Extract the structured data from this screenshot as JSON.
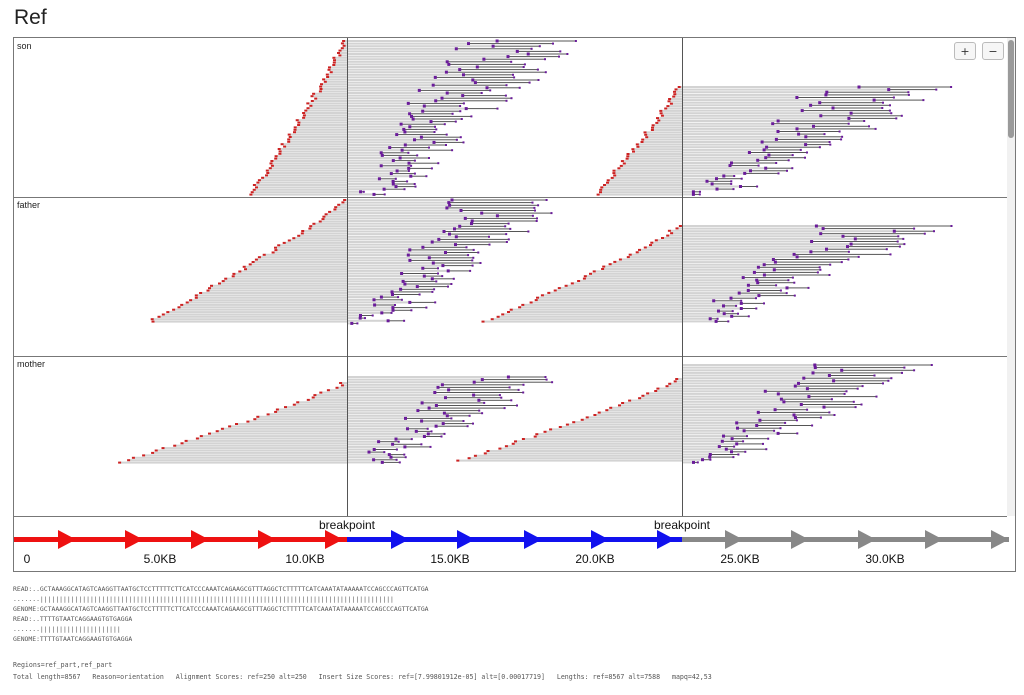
{
  "title": "Ref",
  "zoom": {
    "in_label": "+",
    "out_label": "−"
  },
  "tracks": [
    {
      "name": "son"
    },
    {
      "name": "father"
    },
    {
      "name": "mother"
    }
  ],
  "ruler": {
    "ticks": [
      "0",
      "5.0KB",
      "10.0KB",
      "15.0KB",
      "20.0KB",
      "25.0KB",
      "30.0KB"
    ],
    "breakpoint_label": "breakpoint",
    "segment_colors": [
      "#ee1111",
      "#1111ee",
      "#888888"
    ]
  },
  "colors": {
    "read_fill": "#d3d3d3",
    "left_clip": "#cc2222",
    "right_clip": "#6a1b9a"
  },
  "alignment_lines": [
    "READ:..GCTAAAGGCATAGTCAAGGTTAATGCTCCTTTTTCTTCATCCCAAATCAGAAGCGTTTAGGCTCTTTTTCATCAAATATAAAAATCCAGCCCAGTTCATGA",
    ".......||||||||||||||||||||||||||||||||||||||||||||||||||||||||||||||||||||||||||||||||||||||||||||",
    "GENOME:GCTAAAGGCATAGTCAAGGTTAATGCTCCTTTTTCTTCATCCCAAATCAGAAGCGTTTAGGCTCTTTTTCATCAAATATAAAAATCCAGCCCAGTTCATGA",
    "READ:..TTTTGTAATCAGGAAGTGTGAGGA",
    ".......|||||||||||||||||||||",
    "GENOME:TTTTGTAATCAGGAAGTGTGAGGA"
  ],
  "footer": {
    "regions": "Regions=ref_part,ref_part",
    "stats": "Total length=8567   Reason=orientation   Alignment Scores: ref=250 alt=250   Insert Size Scores: ref=[7.99801912e-05] alt=[0.00017719]   Lengths: ref=8567 alt=7588   mapq=42,53"
  }
}
